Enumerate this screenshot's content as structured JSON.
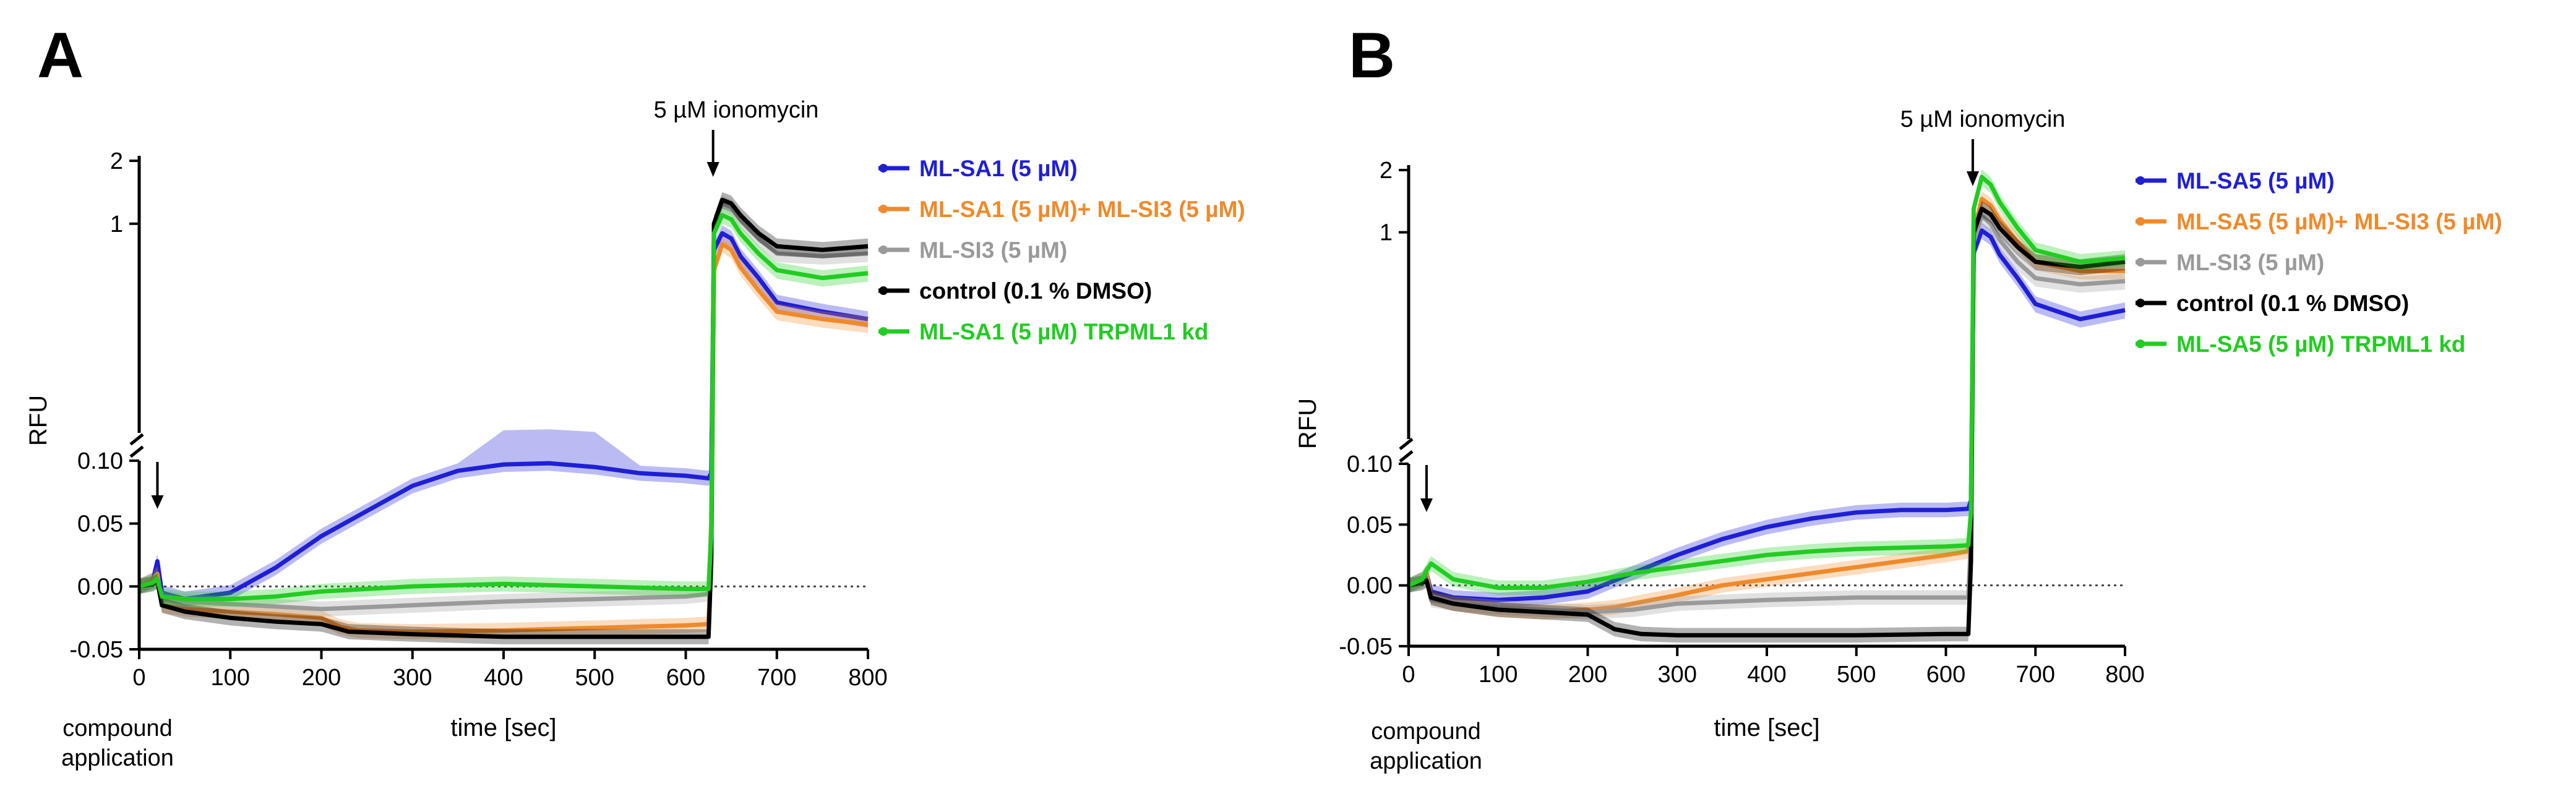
{
  "colors": {
    "blue": "#1f1fd6",
    "orange": "#ef8a2b",
    "gray": "#9a9a9a",
    "black": "#000000",
    "green": "#22cc22"
  },
  "annotations": {
    "compound_line1": "compound",
    "compound_line2": "application",
    "ionomycin": "5 µM ionomycin"
  },
  "chart_data": [
    {
      "panel": "A",
      "type": "line",
      "xlabel": "time [sec]",
      "ylabel": "RFU",
      "xlim": [
        0,
        800
      ],
      "x_ticks": [
        "0",
        "100",
        "200",
        "300",
        "400",
        "500",
        "600",
        "700",
        "800"
      ],
      "y_lower_ticks": [
        "-0.05",
        "0.00",
        "0.05",
        "0.10"
      ],
      "y_upper_ticks": [
        "1",
        "2"
      ],
      "y_lower_range": [
        -0.05,
        0.1
      ],
      "y_upper_range": [
        0.1,
        2
      ],
      "legend_position": "right",
      "series": [
        {
          "name": "ML-SA1 (5 µM)",
          "color_key": "blue",
          "x": [
            0,
            15,
            20,
            25,
            50,
            100,
            150,
            200,
            250,
            300,
            350,
            400,
            450,
            500,
            550,
            600,
            625,
            628,
            631,
            640,
            650,
            660,
            680,
            700,
            750,
            800
          ],
          "y": [
            0.0,
            0.005,
            0.02,
            -0.005,
            -0.01,
            -0.005,
            0.015,
            0.04,
            0.06,
            0.08,
            0.092,
            0.097,
            0.098,
            0.095,
            0.09,
            0.088,
            0.086,
            0.09,
            0.75,
            0.9,
            0.85,
            0.7,
            0.55,
            0.42,
            0.38,
            0.35
          ]
        },
        {
          "name": "ML-SA1 (5 µM)+ ML-SI3 (5 µM)",
          "color_key": "orange",
          "x": [
            0,
            15,
            20,
            25,
            50,
            100,
            150,
            200,
            220,
            240,
            300,
            400,
            500,
            600,
            625,
            628,
            631,
            640,
            650,
            660,
            680,
            700,
            750,
            800
          ],
          "y": [
            0.0,
            0.005,
            0.01,
            -0.015,
            -0.018,
            -0.02,
            -0.022,
            -0.025,
            -0.032,
            -0.035,
            -0.036,
            -0.035,
            -0.033,
            -0.031,
            -0.03,
            0.03,
            0.6,
            0.8,
            0.75,
            0.62,
            0.48,
            0.38,
            0.35,
            0.33
          ]
        },
        {
          "name": "ML-SI3 (5 µM)",
          "color_key": "gray",
          "x": [
            0,
            15,
            20,
            25,
            50,
            100,
            200,
            300,
            400,
            500,
            600,
            625,
            628,
            631,
            640,
            650,
            660,
            680,
            700,
            750,
            800
          ],
          "y": [
            0.0,
            0.003,
            0.005,
            -0.01,
            -0.012,
            -0.014,
            -0.018,
            -0.015,
            -0.012,
            -0.01,
            -0.008,
            -0.006,
            0.05,
            1.0,
            1.25,
            1.2,
            1.05,
            0.85,
            0.72,
            0.7,
            0.72
          ]
        },
        {
          "name": "control (0.1 % DMSO)",
          "color_key": "black",
          "x": [
            0,
            15,
            20,
            25,
            50,
            100,
            150,
            200,
            230,
            300,
            400,
            500,
            600,
            625,
            628,
            631,
            640,
            650,
            660,
            680,
            700,
            750,
            800
          ],
          "y": [
            0.0,
            0.002,
            0.004,
            -0.015,
            -0.02,
            -0.025,
            -0.028,
            -0.03,
            -0.036,
            -0.038,
            -0.04,
            -0.04,
            -0.04,
            -0.04,
            0.02,
            1.0,
            1.3,
            1.25,
            1.1,
            0.9,
            0.78,
            0.75,
            0.78
          ]
        },
        {
          "name": "ML-SA1 (5 µM) TRPML1 kd",
          "color_key": "green",
          "x": [
            0,
            15,
            20,
            25,
            50,
            100,
            150,
            200,
            300,
            400,
            500,
            600,
            625,
            628,
            631,
            640,
            650,
            660,
            680,
            700,
            750,
            800
          ],
          "y": [
            0.0,
            0.003,
            0.006,
            -0.008,
            -0.01,
            -0.01,
            -0.008,
            -0.004,
            0.0,
            0.002,
            0.0,
            -0.002,
            -0.002,
            0.04,
            0.9,
            1.1,
            1.05,
            0.9,
            0.72,
            0.6,
            0.55,
            0.58
          ]
        }
      ]
    },
    {
      "panel": "B",
      "type": "line",
      "xlabel": "time [sec]",
      "ylabel": "RFU",
      "xlim": [
        0,
        800
      ],
      "x_ticks": [
        "0",
        "100",
        "200",
        "300",
        "400",
        "500",
        "600",
        "700",
        "800"
      ],
      "y_lower_ticks": [
        "-0.05",
        "0.00",
        "0.05",
        "0.10"
      ],
      "y_upper_ticks": [
        "1",
        "2"
      ],
      "y_lower_range": [
        -0.05,
        0.1
      ],
      "y_upper_range": [
        0.1,
        2
      ],
      "legend_position": "right",
      "series": [
        {
          "name": "ML-SA5 (5 µM)",
          "color_key": "blue",
          "x": [
            0,
            15,
            20,
            25,
            50,
            100,
            150,
            200,
            250,
            300,
            350,
            400,
            450,
            500,
            550,
            600,
            625,
            628,
            631,
            640,
            650,
            660,
            680,
            700,
            750,
            800
          ],
          "y": [
            0.0,
            0.005,
            0.01,
            -0.005,
            -0.01,
            -0.012,
            -0.01,
            -0.005,
            0.01,
            0.025,
            0.038,
            0.048,
            0.055,
            0.06,
            0.062,
            0.062,
            0.063,
            0.07,
            0.8,
            1.02,
            0.95,
            0.78,
            0.6,
            0.45,
            0.38,
            0.42
          ]
        },
        {
          "name": "ML-SA5 (5 µM)+ ML-SI3 (5 µM)",
          "color_key": "orange",
          "x": [
            0,
            15,
            20,
            25,
            50,
            100,
            150,
            200,
            230,
            250,
            300,
            350,
            400,
            450,
            500,
            550,
            600,
            625,
            628,
            631,
            640,
            650,
            660,
            680,
            700,
            750,
            800
          ],
          "y": [
            0.0,
            0.005,
            0.01,
            -0.01,
            -0.015,
            -0.02,
            -0.022,
            -0.02,
            -0.018,
            -0.015,
            -0.008,
            0.0,
            0.005,
            0.01,
            0.015,
            0.02,
            0.025,
            0.028,
            0.05,
            1.0,
            1.45,
            1.35,
            1.15,
            0.9,
            0.72,
            0.65,
            0.65
          ]
        },
        {
          "name": "ML-SI3 (5 µM)",
          "color_key": "gray",
          "x": [
            0,
            15,
            20,
            25,
            50,
            100,
            150,
            200,
            250,
            300,
            400,
            500,
            600,
            625,
            628,
            631,
            640,
            650,
            660,
            680,
            700,
            750,
            800
          ],
          "y": [
            0.0,
            0.003,
            0.006,
            -0.012,
            -0.015,
            -0.018,
            -0.02,
            -0.022,
            -0.02,
            -0.015,
            -0.012,
            -0.01,
            -0.01,
            -0.01,
            0.04,
            0.9,
            1.2,
            1.1,
            0.92,
            0.72,
            0.6,
            0.56,
            0.58
          ]
        },
        {
          "name": "control (0.1 % DMSO)",
          "color_key": "black",
          "x": [
            0,
            15,
            20,
            25,
            50,
            100,
            150,
            200,
            230,
            260,
            300,
            400,
            500,
            600,
            625,
            628,
            631,
            640,
            650,
            660,
            680,
            700,
            750,
            800
          ],
          "y": [
            0.0,
            0.002,
            0.004,
            -0.01,
            -0.015,
            -0.02,
            -0.022,
            -0.024,
            -0.036,
            -0.04,
            -0.041,
            -0.041,
            -0.041,
            -0.04,
            -0.04,
            0.02,
            1.0,
            1.3,
            1.22,
            1.05,
            0.85,
            0.72,
            0.68,
            0.72
          ]
        },
        {
          "name": "ML-SA5 (5 µM) TRPML1 kd",
          "color_key": "green",
          "x": [
            0,
            15,
            20,
            25,
            50,
            100,
            150,
            200,
            250,
            300,
            350,
            400,
            450,
            500,
            550,
            600,
            625,
            628,
            631,
            640,
            650,
            660,
            680,
            700,
            750,
            800
          ],
          "y": [
            0.0,
            0.005,
            0.012,
            0.018,
            0.005,
            -0.002,
            -0.002,
            0.003,
            0.01,
            0.015,
            0.02,
            0.025,
            0.028,
            0.03,
            0.031,
            0.032,
            0.033,
            0.06,
            1.3,
            1.85,
            1.7,
            1.4,
            1.05,
            0.82,
            0.72,
            0.75
          ]
        }
      ]
    }
  ]
}
